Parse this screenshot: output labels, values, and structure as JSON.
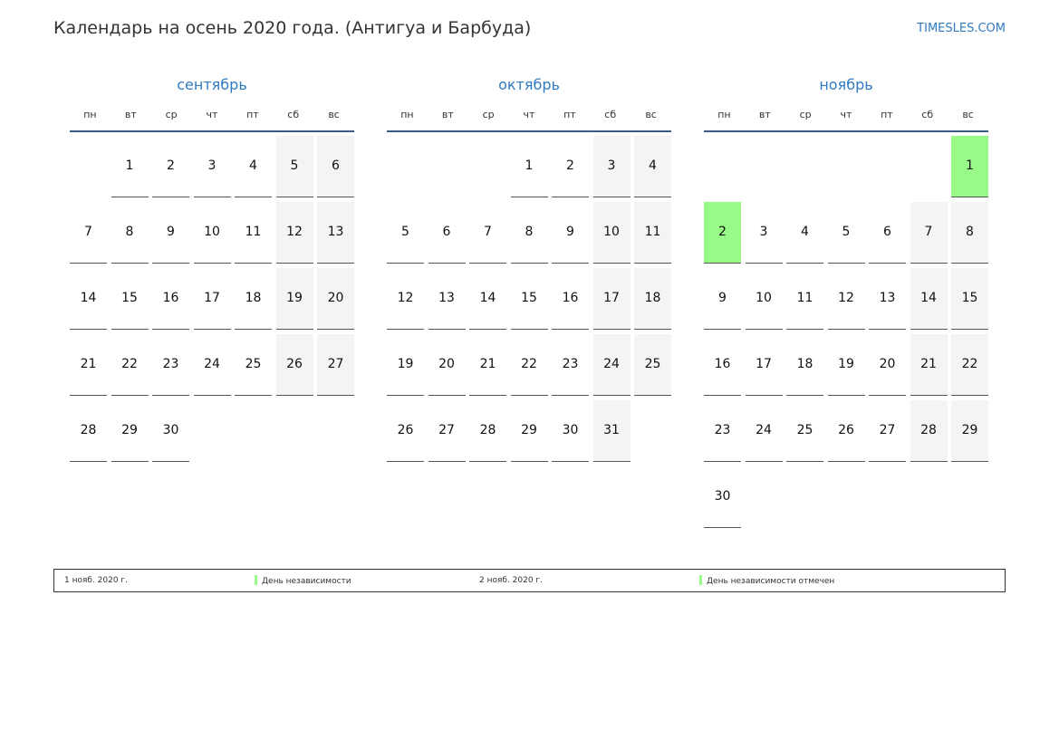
{
  "header": {
    "title": "Календарь на осень 2020 года. (Антигуа и Барбуда)",
    "brand": "TIMESLES.COM"
  },
  "weekdays": [
    "пн",
    "вт",
    "ср",
    "чт",
    "пт",
    "сб",
    "вс"
  ],
  "colors": {
    "accent": "#2f7bc3",
    "holiday": "#98fb88",
    "weekend": "#f4f4f4"
  },
  "months": [
    {
      "name": "сентябрь",
      "first_weekday": 2,
      "days": 30,
      "holidays": []
    },
    {
      "name": "октябрь",
      "first_weekday": 4,
      "days": 31,
      "holidays": []
    },
    {
      "name": "ноябрь",
      "first_weekday": 7,
      "days": 30,
      "holidays": [
        1,
        2
      ]
    }
  ],
  "legend": [
    {
      "date": "1 нояб. 2020 г.",
      "label": "День независимости"
    },
    {
      "date": "2 нояб. 2020 г.",
      "label": "День независимости отмечен"
    }
  ]
}
